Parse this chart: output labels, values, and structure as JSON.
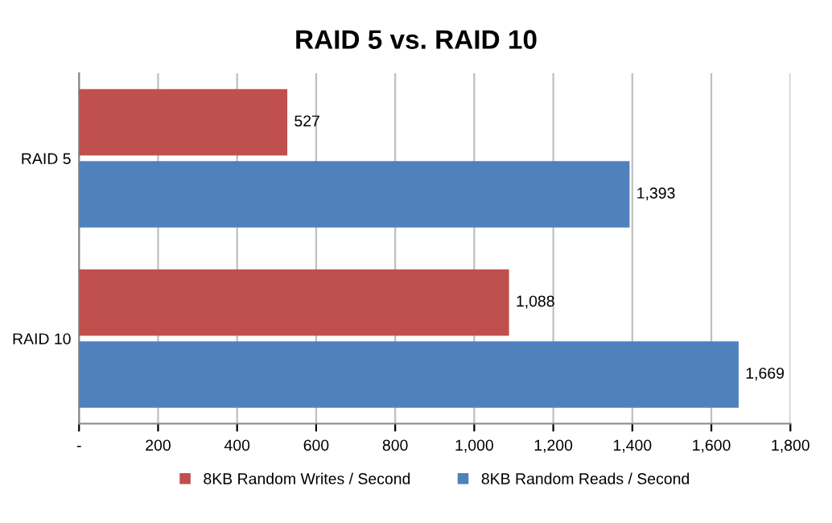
{
  "chart_data": {
    "type": "bar",
    "title": "RAID 5 vs. RAID 10",
    "orientation": "horizontal",
    "categories": [
      "RAID 5",
      "RAID 10"
    ],
    "series": [
      {
        "name": "8KB Random Writes / Second",
        "color": "#c0504d",
        "values": [
          527,
          1088
        ],
        "value_labels": [
          "527",
          "1,088"
        ]
      },
      {
        "name": "8KB Random Reads / Second",
        "color": "#4f81bd",
        "values": [
          1393,
          1669
        ],
        "value_labels": [
          "1,393",
          "1,669"
        ]
      }
    ],
    "xlim": [
      0,
      1800
    ],
    "xticks": [
      {
        "value": 0,
        "label": "-"
      },
      {
        "value": 200,
        "label": "200"
      },
      {
        "value": 400,
        "label": "400"
      },
      {
        "value": 600,
        "label": "600"
      },
      {
        "value": 800,
        "label": "800"
      },
      {
        "value": 1000,
        "label": "1,000"
      },
      {
        "value": 1200,
        "label": "1,200"
      },
      {
        "value": 1400,
        "label": "1,400"
      },
      {
        "value": 1600,
        "label": "1,600"
      },
      {
        "value": 1800,
        "label": "1,800"
      }
    ],
    "grid": "x",
    "legend": "bottom"
  }
}
